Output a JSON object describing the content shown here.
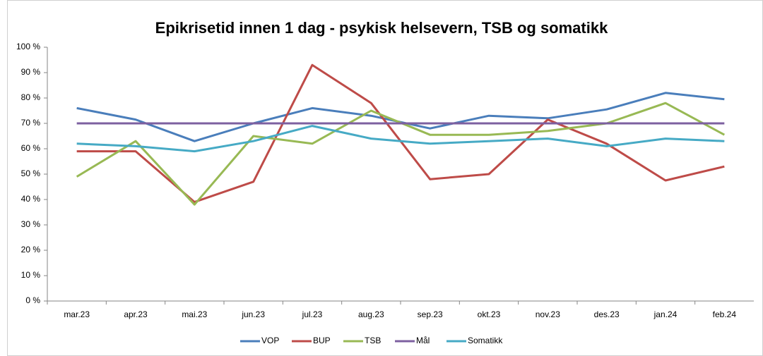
{
  "chart_data": {
    "type": "line",
    "title": "Epikrisetid innen 1 dag - psykisk helsevern, TSB og somatikk",
    "categories": [
      "mar.23",
      "apr.23",
      "mai.23",
      "jun.23",
      "jul.23",
      "aug.23",
      "sep.23",
      "okt.23",
      "nov.23",
      "des.23",
      "jan.24",
      "feb.24"
    ],
    "series": [
      {
        "name": "VOP",
        "color": "#4a7ebb",
        "values": [
          76,
          71.5,
          63,
          70,
          76,
          73,
          68,
          73,
          72,
          75.5,
          82,
          79.5
        ]
      },
      {
        "name": "BUP",
        "color": "#be4b48",
        "values": [
          59,
          59,
          39,
          47,
          93,
          78,
          48,
          50,
          71.5,
          62,
          47.5,
          53
        ]
      },
      {
        "name": "TSB",
        "color": "#98b954",
        "values": [
          49,
          63,
          38,
          65,
          62,
          75,
          65.5,
          65.5,
          67,
          70,
          78,
          65.5
        ]
      },
      {
        "name": "Mål",
        "color": "#7d60a0",
        "values": [
          70,
          70,
          70,
          70,
          70,
          70,
          70,
          70,
          70,
          70,
          70,
          70
        ]
      },
      {
        "name": "Somatikk",
        "color": "#46aac5",
        "values": [
          62,
          61,
          59,
          63,
          69,
          64,
          62,
          63,
          64,
          61,
          64,
          63
        ]
      }
    ],
    "ylim": [
      0,
      100
    ],
    "yticks": [
      {
        "value": 0,
        "label": "0 %"
      },
      {
        "value": 10,
        "label": "10 %"
      },
      {
        "value": 20,
        "label": "20 %"
      },
      {
        "value": 30,
        "label": "30 %"
      },
      {
        "value": 40,
        "label": "40 %"
      },
      {
        "value": 50,
        "label": "50 %"
      },
      {
        "value": 60,
        "label": "60 %"
      },
      {
        "value": 70,
        "label": "70 %"
      },
      {
        "value": 80,
        "label": "80 %"
      },
      {
        "value": 90,
        "label": "90 %"
      },
      {
        "value": 100,
        "label": "100 %"
      }
    ],
    "legend": "bottom"
  }
}
